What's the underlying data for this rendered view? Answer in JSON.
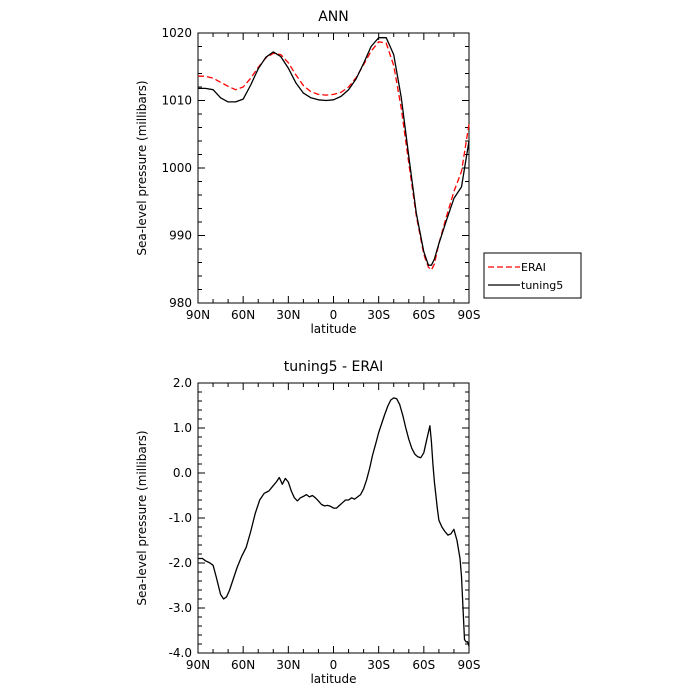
{
  "chart_data": [
    {
      "type": "line",
      "title": "ANN",
      "xlabel": "latitude",
      "ylabel": "Sea-level pressure (millibars)",
      "x_ticks": [
        {
          "value": -90,
          "label": "90N"
        },
        {
          "value": -60,
          "label": "60N"
        },
        {
          "value": -30,
          "label": "30N"
        },
        {
          "value": 0,
          "label": "0"
        },
        {
          "value": 30,
          "label": "30S"
        },
        {
          "value": 60,
          "label": "60S"
        },
        {
          "value": 90,
          "label": "90S"
        }
      ],
      "y_ticks": [
        {
          "value": 980,
          "label": "980"
        },
        {
          "value": 990,
          "label": "990"
        },
        {
          "value": 1000,
          "label": "1000"
        },
        {
          "value": 1010,
          "label": "1010"
        },
        {
          "value": 1020,
          "label": "1020"
        }
      ],
      "xlim": [
        -90,
        90
      ],
      "ylim": [
        980,
        1020
      ],
      "legend": "right",
      "series": [
        {
          "name": "ERAI",
          "color": "#ff0000",
          "dash": "dashed",
          "x": [
            -90,
            -85,
            -80,
            -75,
            -70,
            -65,
            -60,
            -55,
            -50,
            -45,
            -40,
            -35,
            -30,
            -25,
            -20,
            -15,
            -10,
            -5,
            0,
            5,
            10,
            15,
            20,
            25,
            30,
            35,
            40,
            45,
            50,
            55,
            60,
            63,
            65,
            67,
            70,
            75,
            80,
            85,
            90
          ],
          "y": [
            1013.6,
            1013.6,
            1013.3,
            1012.7,
            1012.1,
            1011.6,
            1012.0,
            1013.3,
            1014.9,
            1016.3,
            1017.0,
            1016.8,
            1015.6,
            1013.8,
            1012.2,
            1011.3,
            1010.9,
            1010.8,
            1010.9,
            1011.2,
            1012.0,
            1013.4,
            1015.3,
            1017.3,
            1018.7,
            1018.5,
            1015.2,
            1008.8,
            1000.7,
            992.9,
            987.2,
            985.3,
            984.9,
            985.8,
            988.8,
            992.8,
            996.5,
            999.5,
            1006.5
          ]
        },
        {
          "name": "tuning5",
          "color": "#000000",
          "dash": "solid",
          "x": [
            -90,
            -85,
            -80,
            -75,
            -70,
            -65,
            -60,
            -55,
            -50,
            -45,
            -40,
            -35,
            -30,
            -25,
            -20,
            -15,
            -10,
            -5,
            0,
            5,
            10,
            15,
            20,
            25,
            30,
            35,
            40,
            45,
            50,
            55,
            60,
            63,
            65,
            67,
            70,
            75,
            80,
            85,
            90
          ],
          "y": [
            1011.8,
            1011.8,
            1011.6,
            1010.4,
            1009.8,
            1009.8,
            1010.2,
            1012.3,
            1014.7,
            1016.4,
            1017.2,
            1016.5,
            1014.8,
            1012.6,
            1011.1,
            1010.4,
            1010.1,
            1010.0,
            1010.1,
            1010.6,
            1011.6,
            1013.2,
            1015.5,
            1018.0,
            1019.3,
            1019.3,
            1016.8,
            1010.4,
            1001.7,
            993.3,
            987.6,
            985.6,
            985.6,
            986.5,
            988.8,
            992.2,
            995.5,
            997.2,
            1004.0
          ]
        }
      ]
    },
    {
      "type": "line",
      "title": "tuning5 - ERAI",
      "xlabel": "latitude",
      "ylabel": "Sea-level pressure (millibars)",
      "x_ticks": [
        {
          "value": -90,
          "label": "90N"
        },
        {
          "value": -60,
          "label": "60N"
        },
        {
          "value": -30,
          "label": "30N"
        },
        {
          "value": 0,
          "label": "0"
        },
        {
          "value": 30,
          "label": "30S"
        },
        {
          "value": 60,
          "label": "60S"
        },
        {
          "value": 90,
          "label": "90S"
        }
      ],
      "y_ticks": [
        {
          "value": -4,
          "label": "-4.0"
        },
        {
          "value": -3,
          "label": "-3.0"
        },
        {
          "value": -2,
          "label": "-2.0"
        },
        {
          "value": -1,
          "label": "-1.0"
        },
        {
          "value": 0,
          "label": "0.0"
        },
        {
          "value": 1,
          "label": "1.0"
        },
        {
          "value": 2,
          "label": "2.0"
        }
      ],
      "xlim": [
        -90,
        90
      ],
      "ylim": [
        -4,
        2
      ],
      "series": [
        {
          "color": "#000000",
          "dash": "solid",
          "x": [
            -90,
            -87,
            -85,
            -82,
            -80,
            -78,
            -75,
            -73,
            -71,
            -69,
            -67,
            -64,
            -61,
            -58,
            -55,
            -52,
            -49,
            -46,
            -43,
            -40,
            -38,
            -36,
            -34,
            -32,
            -30,
            -28,
            -26,
            -24,
            -22,
            -20,
            -18,
            -16,
            -14,
            -12,
            -10,
            -8,
            -6,
            -4,
            -2,
            0,
            2,
            4,
            6,
            8,
            10,
            12,
            14,
            16,
            18,
            20,
            22,
            24,
            26,
            28,
            30,
            32,
            34,
            36,
            38,
            40,
            42,
            44,
            46,
            48,
            50,
            52,
            54,
            56,
            58,
            60,
            62,
            64,
            65,
            66,
            67,
            68,
            69,
            70,
            72,
            74,
            76,
            78,
            80,
            82,
            84,
            85,
            86,
            87,
            88,
            89,
            90
          ],
          "y": [
            -1.9,
            -1.9,
            -1.95,
            -2.0,
            -2.05,
            -2.3,
            -2.7,
            -2.8,
            -2.75,
            -2.6,
            -2.4,
            -2.1,
            -1.85,
            -1.65,
            -1.3,
            -0.9,
            -0.6,
            -0.45,
            -0.4,
            -0.28,
            -0.2,
            -0.1,
            -0.25,
            -0.12,
            -0.2,
            -0.4,
            -0.55,
            -0.62,
            -0.55,
            -0.52,
            -0.48,
            -0.53,
            -0.5,
            -0.55,
            -0.62,
            -0.7,
            -0.73,
            -0.72,
            -0.74,
            -0.78,
            -0.78,
            -0.72,
            -0.66,
            -0.6,
            -0.6,
            -0.55,
            -0.58,
            -0.53,
            -0.48,
            -0.35,
            -0.15,
            0.1,
            0.4,
            0.65,
            0.9,
            1.1,
            1.3,
            1.48,
            1.62,
            1.67,
            1.65,
            1.52,
            1.28,
            1.0,
            0.75,
            0.55,
            0.42,
            0.36,
            0.34,
            0.45,
            0.75,
            1.05,
            0.7,
            0.2,
            -0.2,
            -0.5,
            -0.8,
            -1.05,
            -1.2,
            -1.3,
            -1.38,
            -1.35,
            -1.25,
            -1.5,
            -1.9,
            -2.3,
            -3.0,
            -3.7,
            -3.75,
            -3.75,
            -3.85
          ]
        }
      ]
    }
  ]
}
